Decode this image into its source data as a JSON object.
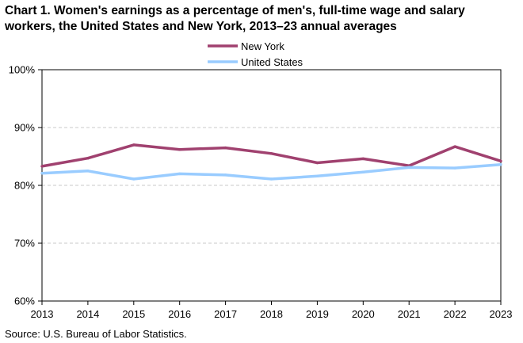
{
  "chart_data": {
    "type": "line",
    "title": [
      "Chart 1. Women's earnings as a percentage of men's, full-time wage and salary",
      "workers, the United States and New York, 2013–23 annual averages"
    ],
    "xlabel": "",
    "ylabel": "",
    "x": [
      "2013",
      "2014",
      "2015",
      "2016",
      "2017",
      "2018",
      "2019",
      "2020",
      "2021",
      "2022",
      "2023"
    ],
    "ylim": [
      60,
      100
    ],
    "yticks": [
      {
        "value": 60,
        "label": "60%"
      },
      {
        "value": 70,
        "label": "70%"
      },
      {
        "value": 80,
        "label": "80%"
      },
      {
        "value": 90,
        "label": "90%"
      },
      {
        "value": 100,
        "label": "100%"
      }
    ],
    "grid": "horizontal dashed",
    "legend": "top-center",
    "series": [
      {
        "name": "New York",
        "color": "#a0416f",
        "values": [
          83.3,
          84.7,
          87.0,
          86.2,
          86.5,
          85.5,
          83.9,
          84.6,
          83.4,
          86.7,
          84.2
        ]
      },
      {
        "name": "United States",
        "color": "#99ccff",
        "values": [
          82.1,
          82.5,
          81.1,
          82.0,
          81.8,
          81.1,
          81.6,
          82.3,
          83.1,
          83.0,
          83.6
        ]
      }
    ]
  },
  "source": "Source:  U.S. Bureau of Labor Statistics."
}
